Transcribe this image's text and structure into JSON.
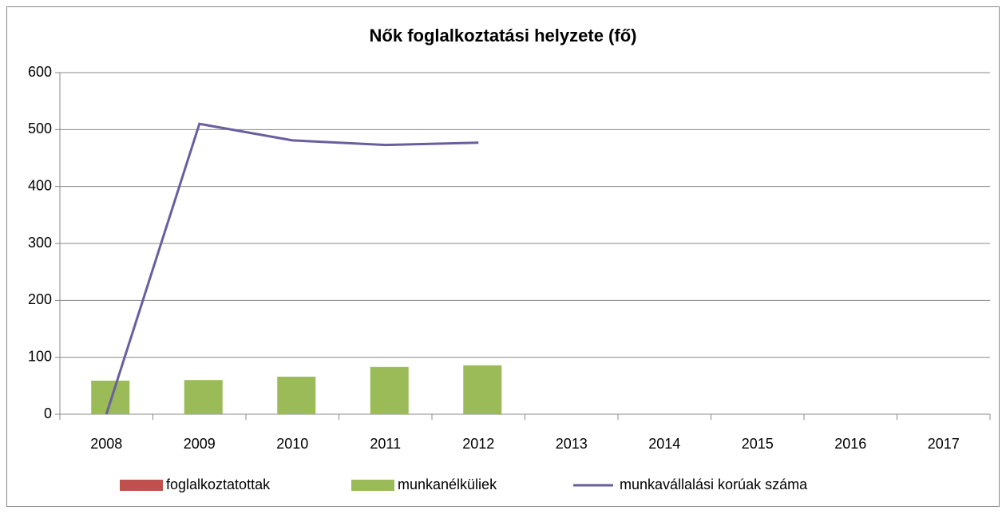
{
  "chart_data": {
    "type": "bar",
    "title": "Nők foglalkoztatási helyzete (fő)",
    "categories": [
      "2008",
      "2009",
      "2010",
      "2011",
      "2012",
      "2013",
      "2014",
      "2015",
      "2016",
      "2017"
    ],
    "series": [
      {
        "name": "foglalkoztatottak",
        "color": "#c0504d",
        "type": "bar",
        "values": [
          null,
          null,
          null,
          null,
          null,
          null,
          null,
          null,
          null,
          null
        ]
      },
      {
        "name": "munkanélküliek",
        "color": "#9bbb59",
        "type": "bar",
        "values": [
          59,
          60,
          66,
          83,
          86,
          null,
          null,
          null,
          null,
          null
        ]
      },
      {
        "name": "munkavállalási korúak száma",
        "color": "#6a5e9e",
        "type": "line",
        "values": [
          0,
          510,
          481,
          473,
          477,
          null,
          null,
          null,
          null,
          null
        ]
      }
    ],
    "ylim": [
      0,
      600
    ],
    "yticks": [
      0,
      100,
      200,
      300,
      400,
      500,
      600
    ],
    "grid": true,
    "legend": "bottom"
  }
}
